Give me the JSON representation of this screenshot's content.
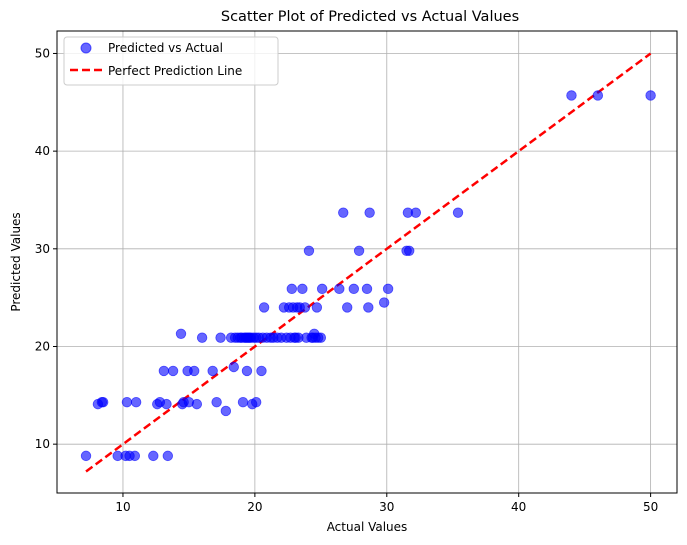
{
  "chart_data": {
    "type": "scatter",
    "title": "Scatter Plot of Predicted vs Actual Values",
    "xlabel": "Actual Values",
    "ylabel": "Predicted Values",
    "xlim": [
      5,
      52
    ],
    "ylim": [
      5,
      52.3
    ],
    "xticks": [
      10,
      20,
      30,
      40,
      50
    ],
    "yticks": [
      10,
      20,
      30,
      40,
      50
    ],
    "grid": true,
    "legend_position": "top-left",
    "series": [
      {
        "name": "Predicted vs Actual",
        "kind": "scatter",
        "color": "#0000ff",
        "opacity": 0.6,
        "points": [
          [
            7.2,
            8.8
          ],
          [
            8.1,
            14.1
          ],
          [
            8.4,
            14.3
          ],
          [
            8.5,
            14.3
          ],
          [
            9.6,
            8.8
          ],
          [
            10.2,
            8.8
          ],
          [
            10.3,
            14.3
          ],
          [
            10.5,
            8.8
          ],
          [
            10.9,
            8.8
          ],
          [
            11.0,
            14.3
          ],
          [
            12.3,
            8.8
          ],
          [
            12.6,
            14.1
          ],
          [
            12.8,
            14.3
          ],
          [
            13.1,
            17.5
          ],
          [
            13.3,
            14.1
          ],
          [
            13.4,
            8.8
          ],
          [
            13.8,
            17.5
          ],
          [
            14.4,
            21.3
          ],
          [
            14.5,
            14.1
          ],
          [
            14.6,
            14.3
          ],
          [
            14.9,
            17.5
          ],
          [
            15.0,
            14.3
          ],
          [
            15.4,
            17.5
          ],
          [
            15.6,
            14.1
          ],
          [
            16.0,
            20.9
          ],
          [
            16.8,
            17.5
          ],
          [
            17.1,
            14.3
          ],
          [
            17.4,
            20.9
          ],
          [
            17.8,
            13.4
          ],
          [
            18.2,
            20.9
          ],
          [
            18.4,
            17.9
          ],
          [
            18.5,
            20.9
          ],
          [
            18.7,
            20.9
          ],
          [
            18.9,
            20.9
          ],
          [
            19.0,
            20.9
          ],
          [
            19.1,
            14.3
          ],
          [
            19.2,
            20.9
          ],
          [
            19.3,
            20.9
          ],
          [
            19.4,
            20.9
          ],
          [
            19.4,
            17.5
          ],
          [
            19.5,
            20.9
          ],
          [
            19.6,
            20.9
          ],
          [
            19.7,
            20.9
          ],
          [
            19.8,
            14.1
          ],
          [
            19.9,
            20.9
          ],
          [
            20.1,
            20.9
          ],
          [
            20.1,
            14.3
          ],
          [
            20.3,
            20.9
          ],
          [
            20.5,
            17.5
          ],
          [
            20.6,
            20.9
          ],
          [
            20.7,
            24.0
          ],
          [
            20.9,
            20.9
          ],
          [
            21.2,
            20.9
          ],
          [
            21.4,
            20.9
          ],
          [
            21.7,
            20.9
          ],
          [
            22.0,
            20.9
          ],
          [
            22.2,
            24.0
          ],
          [
            22.4,
            20.9
          ],
          [
            22.6,
            24.0
          ],
          [
            22.7,
            20.9
          ],
          [
            22.8,
            25.9
          ],
          [
            22.9,
            24.0
          ],
          [
            23.0,
            20.9
          ],
          [
            23.1,
            20.9
          ],
          [
            23.2,
            24.0
          ],
          [
            23.3,
            20.9
          ],
          [
            23.4,
            24.0
          ],
          [
            23.6,
            25.9
          ],
          [
            23.8,
            24.0
          ],
          [
            23.9,
            20.9
          ],
          [
            24.1,
            29.8
          ],
          [
            24.3,
            20.9
          ],
          [
            24.4,
            20.9
          ],
          [
            24.5,
            21.3
          ],
          [
            24.6,
            20.9
          ],
          [
            24.7,
            24.0
          ],
          [
            24.8,
            20.9
          ],
          [
            25.0,
            20.9
          ],
          [
            25.1,
            25.9
          ],
          [
            26.4,
            25.9
          ],
          [
            26.7,
            33.7
          ],
          [
            27.0,
            24.0
          ],
          [
            27.5,
            25.9
          ],
          [
            27.9,
            29.8
          ],
          [
            28.5,
            25.9
          ],
          [
            28.6,
            24.0
          ],
          [
            28.7,
            33.7
          ],
          [
            29.8,
            24.5
          ],
          [
            30.1,
            25.9
          ],
          [
            31.5,
            29.8
          ],
          [
            31.6,
            33.7
          ],
          [
            31.7,
            29.8
          ],
          [
            32.2,
            33.7
          ],
          [
            35.4,
            33.7
          ],
          [
            44.0,
            45.7
          ],
          [
            46.0,
            45.7
          ],
          [
            50.0,
            45.7
          ]
        ]
      },
      {
        "name": "Perfect Prediction Line",
        "kind": "line",
        "color": "#ff0000",
        "dash": "dashed",
        "points": [
          [
            7.2,
            7.2
          ],
          [
            50.0,
            50.0
          ]
        ]
      }
    ]
  }
}
